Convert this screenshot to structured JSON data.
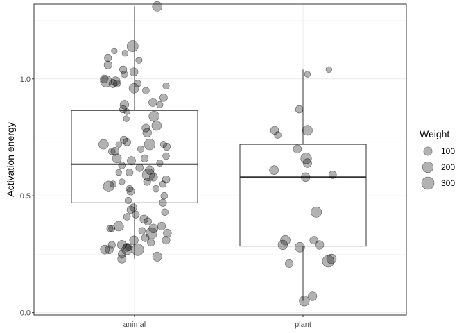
{
  "chart_data": {
    "type": "boxplot-with-jitter",
    "ylabel": "Activation energy",
    "xlabel": "",
    "categories": [
      "animal",
      "plant"
    ],
    "ylim": [
      -0.01,
      1.32
    ],
    "yticks": [
      0.0,
      0.5,
      1.0
    ],
    "ytick_labels": [
      "0.0",
      "0.5",
      "1.0"
    ],
    "grid": true,
    "legend": {
      "title": "Weight",
      "placement": "right",
      "entries": [
        {
          "label": "100",
          "value": 100
        },
        {
          "label": "200",
          "value": 200
        },
        {
          "label": "300",
          "value": 300
        }
      ]
    },
    "boxes": [
      {
        "category": "animal",
        "lower_whisker": 0.23,
        "q1": 0.47,
        "median": 0.635,
        "q3": 0.865,
        "upper_whisker": 1.31
      },
      {
        "category": "plant",
        "lower_whisker": 0.05,
        "q1": 0.285,
        "median": 0.58,
        "q3": 0.72,
        "upper_whisker": 1.04
      }
    ],
    "points": [
      {
        "category": "animal",
        "jitter": 0.36,
        "y": 1.31,
        "weight": 150
      },
      {
        "category": "animal",
        "jitter": -0.03,
        "y": 1.14,
        "weight": 220
      },
      {
        "category": "animal",
        "jitter": -0.32,
        "y": 1.12,
        "weight": 30
      },
      {
        "category": "animal",
        "jitter": -0.42,
        "y": 1.09,
        "weight": 60
      },
      {
        "category": "animal",
        "jitter": -0.15,
        "y": 1.11,
        "weight": 30
      },
      {
        "category": "animal",
        "jitter": -0.42,
        "y": 1.06,
        "weight": 80
      },
      {
        "category": "animal",
        "jitter": -0.18,
        "y": 1.04,
        "weight": 60
      },
      {
        "category": "animal",
        "jitter": 0.07,
        "y": 1.08,
        "weight": 40
      },
      {
        "category": "animal",
        "jitter": -0.01,
        "y": 1.03,
        "weight": 90
      },
      {
        "category": "animal",
        "jitter": -0.16,
        "y": 1.02,
        "weight": 50
      },
      {
        "category": "animal",
        "jitter": -0.48,
        "y": 1.0,
        "weight": 80
      },
      {
        "category": "animal",
        "jitter": -0.45,
        "y": 0.99,
        "weight": 240
      },
      {
        "category": "animal",
        "jitter": -0.3,
        "y": 0.99,
        "weight": 120
      },
      {
        "category": "animal",
        "jitter": -0.28,
        "y": 0.98,
        "weight": 60
      },
      {
        "category": "animal",
        "jitter": -0.34,
        "y": 0.98,
        "weight": 90
      },
      {
        "category": "animal",
        "jitter": 0.05,
        "y": 0.98,
        "weight": 50
      },
      {
        "category": "animal",
        "jitter": 0.5,
        "y": 0.97,
        "weight": 40
      },
      {
        "category": "animal",
        "jitter": -0.01,
        "y": 0.96,
        "weight": 150
      },
      {
        "category": "animal",
        "jitter": 0.18,
        "y": 0.95,
        "weight": 50
      },
      {
        "category": "animal",
        "jitter": 0.46,
        "y": 0.92,
        "weight": 70
      },
      {
        "category": "animal",
        "jitter": 0.29,
        "y": 0.9,
        "weight": 90
      },
      {
        "category": "animal",
        "jitter": 0.4,
        "y": 0.89,
        "weight": 40
      },
      {
        "category": "animal",
        "jitter": -0.16,
        "y": 0.89,
        "weight": 110
      },
      {
        "category": "animal",
        "jitter": -0.18,
        "y": 0.87,
        "weight": 60
      },
      {
        "category": "animal",
        "jitter": -0.12,
        "y": 0.86,
        "weight": 30
      },
      {
        "category": "animal",
        "jitter": 0.31,
        "y": 0.84,
        "weight": 180
      },
      {
        "category": "animal",
        "jitter": -0.13,
        "y": 0.83,
        "weight": 30
      },
      {
        "category": "animal",
        "jitter": 0.35,
        "y": 0.8,
        "weight": 140
      },
      {
        "category": "animal",
        "jitter": 0.18,
        "y": 0.79,
        "weight": 80
      },
      {
        "category": "animal",
        "jitter": 0.2,
        "y": 0.77,
        "weight": 110
      },
      {
        "category": "animal",
        "jitter": -0.17,
        "y": 0.74,
        "weight": 60
      },
      {
        "category": "animal",
        "jitter": -0.12,
        "y": 0.73,
        "weight": 70
      },
      {
        "category": "animal",
        "jitter": 0.24,
        "y": 0.72,
        "weight": 210
      },
      {
        "category": "animal",
        "jitter": 0.46,
        "y": 0.72,
        "weight": 40
      },
      {
        "category": "animal",
        "jitter": -0.49,
        "y": 0.72,
        "weight": 150
      },
      {
        "category": "animal",
        "jitter": -0.25,
        "y": 0.72,
        "weight": 30
      },
      {
        "category": "animal",
        "jitter": 0.51,
        "y": 0.71,
        "weight": 60
      },
      {
        "category": "animal",
        "jitter": 0.1,
        "y": 0.7,
        "weight": 40
      },
      {
        "category": "animal",
        "jitter": -0.36,
        "y": 0.69,
        "weight": 50
      },
      {
        "category": "animal",
        "jitter": -0.31,
        "y": 0.69,
        "weight": 90
      },
      {
        "category": "animal",
        "jitter": 0.5,
        "y": 0.67,
        "weight": 50
      },
      {
        "category": "animal",
        "jitter": 0.16,
        "y": 0.66,
        "weight": 60
      },
      {
        "category": "animal",
        "jitter": -0.28,
        "y": 0.66,
        "weight": 120
      },
      {
        "category": "animal",
        "jitter": -0.05,
        "y": 0.65,
        "weight": 100
      },
      {
        "category": "animal",
        "jitter": 0.4,
        "y": 0.64,
        "weight": 40
      },
      {
        "category": "animal",
        "jitter": -0.2,
        "y": 0.63,
        "weight": 50
      },
      {
        "category": "animal",
        "jitter": 0.08,
        "y": 0.62,
        "weight": 70
      },
      {
        "category": "animal",
        "jitter": 0.24,
        "y": 0.61,
        "weight": 110
      },
      {
        "category": "animal",
        "jitter": -0.25,
        "y": 0.6,
        "weight": 30
      },
      {
        "category": "animal",
        "jitter": -0.08,
        "y": 0.6,
        "weight": 60
      },
      {
        "category": "animal",
        "jitter": 0.22,
        "y": 0.59,
        "weight": 280
      },
      {
        "category": "animal",
        "jitter": 0.3,
        "y": 0.58,
        "weight": 90
      },
      {
        "category": "animal",
        "jitter": 0.5,
        "y": 0.57,
        "weight": 70
      },
      {
        "category": "animal",
        "jitter": -0.2,
        "y": 0.56,
        "weight": 30
      },
      {
        "category": "animal",
        "jitter": 0.2,
        "y": 0.56,
        "weight": 60
      },
      {
        "category": "animal",
        "jitter": -0.34,
        "y": 0.55,
        "weight": 40
      },
      {
        "category": "animal",
        "jitter": 0.45,
        "y": 0.55,
        "weight": 40
      },
      {
        "category": "animal",
        "jitter": -0.41,
        "y": 0.54,
        "weight": 200
      },
      {
        "category": "animal",
        "jitter": -0.08,
        "y": 0.53,
        "weight": 50
      },
      {
        "category": "animal",
        "jitter": 0.34,
        "y": 0.53,
        "weight": 50
      },
      {
        "category": "animal",
        "jitter": -0.06,
        "y": 0.52,
        "weight": 80
      },
      {
        "category": "animal",
        "jitter": 0.47,
        "y": 0.5,
        "weight": 50
      },
      {
        "category": "animal",
        "jitter": -0.1,
        "y": 0.48,
        "weight": 40
      },
      {
        "category": "animal",
        "jitter": 0.45,
        "y": 0.47,
        "weight": 60
      },
      {
        "category": "animal",
        "jitter": -0.02,
        "y": 0.45,
        "weight": 60
      },
      {
        "category": "animal",
        "jitter": -0.06,
        "y": 0.44,
        "weight": 70
      },
      {
        "category": "animal",
        "jitter": 0.48,
        "y": 0.43,
        "weight": 50
      },
      {
        "category": "animal",
        "jitter": 0.02,
        "y": 0.42,
        "weight": 60
      },
      {
        "category": "animal",
        "jitter": -0.12,
        "y": 0.41,
        "weight": 50
      },
      {
        "category": "animal",
        "jitter": 0.15,
        "y": 0.4,
        "weight": 90
      },
      {
        "category": "animal",
        "jitter": 0.21,
        "y": 0.39,
        "weight": 70
      },
      {
        "category": "animal",
        "jitter": 0.43,
        "y": 0.37,
        "weight": 80
      },
      {
        "category": "animal",
        "jitter": -0.25,
        "y": 0.37,
        "weight": 150
      },
      {
        "category": "animal",
        "jitter": -0.39,
        "y": 0.36,
        "weight": 40
      },
      {
        "category": "animal",
        "jitter": -0.36,
        "y": 0.36,
        "weight": 40
      },
      {
        "category": "animal",
        "jitter": 0.3,
        "y": 0.36,
        "weight": 120
      },
      {
        "category": "animal",
        "jitter": 0.12,
        "y": 0.35,
        "weight": 50
      },
      {
        "category": "animal",
        "jitter": 0.27,
        "y": 0.34,
        "weight": 220
      },
      {
        "category": "animal",
        "jitter": 0.52,
        "y": 0.34,
        "weight": 90
      },
      {
        "category": "animal",
        "jitter": 0.17,
        "y": 0.32,
        "weight": 70
      },
      {
        "category": "animal",
        "jitter": -0.01,
        "y": 0.31,
        "weight": 110
      },
      {
        "category": "animal",
        "jitter": 0.5,
        "y": 0.31,
        "weight": 80
      },
      {
        "category": "animal",
        "jitter": 0.26,
        "y": 0.3,
        "weight": 60
      },
      {
        "category": "animal",
        "jitter": -0.36,
        "y": 0.29,
        "weight": 60
      },
      {
        "category": "animal",
        "jitter": -0.2,
        "y": 0.29,
        "weight": 120
      },
      {
        "category": "animal",
        "jitter": -0.12,
        "y": 0.28,
        "weight": 90
      },
      {
        "category": "animal",
        "jitter": -0.09,
        "y": 0.28,
        "weight": 60
      },
      {
        "category": "animal",
        "jitter": -0.12,
        "y": 0.27,
        "weight": 180
      },
      {
        "category": "animal",
        "jitter": -0.47,
        "y": 0.27,
        "weight": 120
      },
      {
        "category": "animal",
        "jitter": -0.4,
        "y": 0.27,
        "weight": 90
      },
      {
        "category": "animal",
        "jitter": 0.05,
        "y": 0.27,
        "weight": 270
      },
      {
        "category": "animal",
        "jitter": -0.2,
        "y": 0.25,
        "weight": 70
      },
      {
        "category": "animal",
        "jitter": 0.36,
        "y": 0.24,
        "weight": 130
      },
      {
        "category": "animal",
        "jitter": -0.2,
        "y": 0.23,
        "weight": 100
      },
      {
        "category": "plant",
        "jitter": 0.41,
        "y": 1.04,
        "weight": 30
      },
      {
        "category": "plant",
        "jitter": 0.07,
        "y": 1.02,
        "weight": 30
      },
      {
        "category": "plant",
        "jitter": -0.06,
        "y": 0.87,
        "weight": 70
      },
      {
        "category": "plant",
        "jitter": -0.45,
        "y": 0.78,
        "weight": 90
      },
      {
        "category": "plant",
        "jitter": 0.07,
        "y": 0.78,
        "weight": 160
      },
      {
        "category": "plant",
        "jitter": -0.4,
        "y": 0.76,
        "weight": 50
      },
      {
        "category": "plant",
        "jitter": -0.09,
        "y": 0.7,
        "weight": 90
      },
      {
        "category": "plant",
        "jitter": 0.05,
        "y": 0.66,
        "weight": 200
      },
      {
        "category": "plant",
        "jitter": 0.07,
        "y": 0.64,
        "weight": 110
      },
      {
        "category": "plant",
        "jitter": -0.46,
        "y": 0.61,
        "weight": 120
      },
      {
        "category": "plant",
        "jitter": 0.47,
        "y": 0.59,
        "weight": 70
      },
      {
        "category": "plant",
        "jitter": 0.04,
        "y": 0.58,
        "weight": 110
      },
      {
        "category": "plant",
        "jitter": 0.21,
        "y": 0.43,
        "weight": 190
      },
      {
        "category": "plant",
        "jitter": 0.17,
        "y": 0.31,
        "weight": 80
      },
      {
        "category": "plant",
        "jitter": -0.28,
        "y": 0.31,
        "weight": 150
      },
      {
        "category": "plant",
        "jitter": -0.32,
        "y": 0.29,
        "weight": 140
      },
      {
        "category": "plant",
        "jitter": 0.26,
        "y": 0.29,
        "weight": 110
      },
      {
        "category": "plant",
        "jitter": -0.05,
        "y": 0.28,
        "weight": 150
      },
      {
        "category": "plant",
        "jitter": 0.45,
        "y": 0.23,
        "weight": 150
      },
      {
        "category": "plant",
        "jitter": 0.4,
        "y": 0.22,
        "weight": 260
      },
      {
        "category": "plant",
        "jitter": -0.22,
        "y": 0.21,
        "weight": 80
      },
      {
        "category": "plant",
        "jitter": 0.15,
        "y": 0.07,
        "weight": 110
      },
      {
        "category": "plant",
        "jitter": 0.02,
        "y": 0.05,
        "weight": 170
      }
    ]
  }
}
